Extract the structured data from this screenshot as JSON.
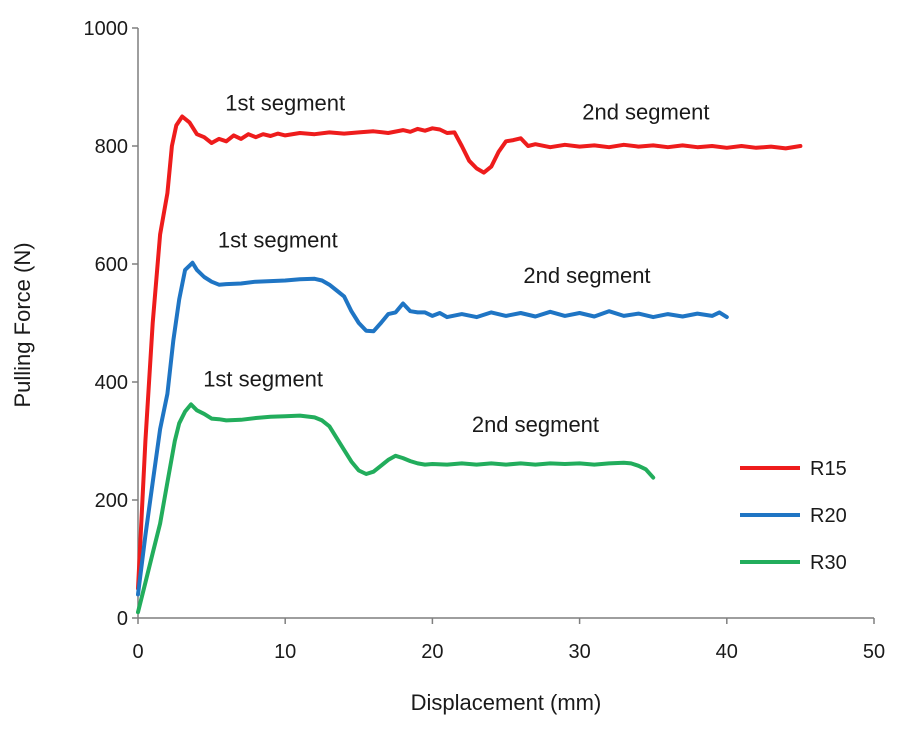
{
  "chart_data": {
    "type": "line",
    "title": "",
    "xlabel": "Displacement (mm)",
    "ylabel": "Pulling Force (N)",
    "xlim": [
      0,
      50
    ],
    "ylim": [
      0,
      1000
    ],
    "xticks": [
      "0",
      "10",
      "20",
      "30",
      "40",
      "50"
    ],
    "yticks": [
      "0",
      "200",
      "400",
      "600",
      "800",
      "1000"
    ],
    "grid": false,
    "legend_position": "right",
    "series": [
      {
        "name": "R15",
        "color": "#ee1c1c",
        "points": [
          [
            0,
            50
          ],
          [
            0.5,
            300
          ],
          [
            1,
            500
          ],
          [
            1.5,
            650
          ],
          [
            2,
            720
          ],
          [
            2.3,
            800
          ],
          [
            2.6,
            835
          ],
          [
            3,
            850
          ],
          [
            3.5,
            840
          ],
          [
            4,
            820
          ],
          [
            4.5,
            815
          ],
          [
            5,
            805
          ],
          [
            5.5,
            812
          ],
          [
            6,
            808
          ],
          [
            6.5,
            818
          ],
          [
            7,
            812
          ],
          [
            7.5,
            820
          ],
          [
            8,
            815
          ],
          [
            8.5,
            820
          ],
          [
            9,
            817
          ],
          [
            9.5,
            821
          ],
          [
            10,
            818
          ],
          [
            11,
            822
          ],
          [
            12,
            820
          ],
          [
            13,
            823
          ],
          [
            14,
            821
          ],
          [
            15,
            823
          ],
          [
            16,
            825
          ],
          [
            17,
            822
          ],
          [
            18,
            827
          ],
          [
            18.5,
            824
          ],
          [
            19,
            829
          ],
          [
            19.5,
            826
          ],
          [
            20,
            830
          ],
          [
            20.5,
            828
          ],
          [
            21,
            822
          ],
          [
            21.5,
            823
          ],
          [
            22,
            800
          ],
          [
            22.5,
            775
          ],
          [
            23,
            762
          ],
          [
            23.5,
            755
          ],
          [
            24,
            765
          ],
          [
            24.5,
            790
          ],
          [
            25,
            808
          ],
          [
            25.5,
            810
          ],
          [
            26,
            813
          ],
          [
            26.5,
            800
          ],
          [
            27,
            803
          ],
          [
            28,
            798
          ],
          [
            29,
            802
          ],
          [
            30,
            799
          ],
          [
            31,
            801
          ],
          [
            32,
            798
          ],
          [
            33,
            802
          ],
          [
            34,
            799
          ],
          [
            35,
            801
          ],
          [
            36,
            798
          ],
          [
            37,
            801
          ],
          [
            38,
            798
          ],
          [
            39,
            800
          ],
          [
            40,
            797
          ],
          [
            41,
            800
          ],
          [
            42,
            797
          ],
          [
            43,
            799
          ],
          [
            44,
            796
          ],
          [
            45,
            800
          ]
        ]
      },
      {
        "name": "R20",
        "color": "#1f75c4",
        "points": [
          [
            0,
            40
          ],
          [
            0.5,
            140
          ],
          [
            1,
            230
          ],
          [
            1.5,
            320
          ],
          [
            2,
            380
          ],
          [
            2.4,
            470
          ],
          [
            2.8,
            540
          ],
          [
            3.2,
            590
          ],
          [
            3.7,
            602
          ],
          [
            4,
            590
          ],
          [
            4.5,
            578
          ],
          [
            5,
            570
          ],
          [
            5.5,
            565
          ],
          [
            6,
            566
          ],
          [
            7,
            567
          ],
          [
            8,
            570
          ],
          [
            9,
            571
          ],
          [
            10,
            572
          ],
          [
            11,
            574
          ],
          [
            12,
            575
          ],
          [
            12.5,
            572
          ],
          [
            13,
            565
          ],
          [
            13.5,
            555
          ],
          [
            14,
            545
          ],
          [
            14.5,
            520
          ],
          [
            15,
            500
          ],
          [
            15.5,
            487
          ],
          [
            16,
            486
          ],
          [
            16.5,
            500
          ],
          [
            17,
            515
          ],
          [
            17.5,
            518
          ],
          [
            18,
            533
          ],
          [
            18.5,
            520
          ],
          [
            19,
            518
          ],
          [
            19.5,
            518
          ],
          [
            20,
            512
          ],
          [
            20.5,
            517
          ],
          [
            21,
            510
          ],
          [
            22,
            515
          ],
          [
            23,
            510
          ],
          [
            24,
            518
          ],
          [
            25,
            512
          ],
          [
            26,
            517
          ],
          [
            27,
            511
          ],
          [
            28,
            519
          ],
          [
            29,
            512
          ],
          [
            30,
            517
          ],
          [
            31,
            511
          ],
          [
            32,
            520
          ],
          [
            33,
            512
          ],
          [
            34,
            516
          ],
          [
            35,
            510
          ],
          [
            36,
            515
          ],
          [
            37,
            511
          ],
          [
            38,
            516
          ],
          [
            39,
            512
          ],
          [
            39.5,
            518
          ],
          [
            40,
            510
          ]
        ]
      },
      {
        "name": "R30",
        "color": "#22ad5c",
        "points": [
          [
            0,
            10
          ],
          [
            0.5,
            60
          ],
          [
            1,
            110
          ],
          [
            1.5,
            160
          ],
          [
            2,
            230
          ],
          [
            2.5,
            300
          ],
          [
            2.8,
            330
          ],
          [
            3.2,
            350
          ],
          [
            3.6,
            362
          ],
          [
            4,
            352
          ],
          [
            4.5,
            346
          ],
          [
            5,
            338
          ],
          [
            5.5,
            337
          ],
          [
            6,
            335
          ],
          [
            7,
            336
          ],
          [
            8,
            339
          ],
          [
            9,
            341
          ],
          [
            10,
            342
          ],
          [
            11,
            343
          ],
          [
            12,
            340
          ],
          [
            12.5,
            335
          ],
          [
            13,
            325
          ],
          [
            13.5,
            305
          ],
          [
            14,
            285
          ],
          [
            14.5,
            265
          ],
          [
            15,
            250
          ],
          [
            15.5,
            244
          ],
          [
            16,
            248
          ],
          [
            16.5,
            258
          ],
          [
            17,
            268
          ],
          [
            17.5,
            275
          ],
          [
            18,
            271
          ],
          [
            18.5,
            266
          ],
          [
            19,
            262
          ],
          [
            19.5,
            260
          ],
          [
            20,
            261
          ],
          [
            21,
            260
          ],
          [
            22,
            262
          ],
          [
            23,
            260
          ],
          [
            24,
            262
          ],
          [
            25,
            260
          ],
          [
            26,
            262
          ],
          [
            27,
            260
          ],
          [
            28,
            262
          ],
          [
            29,
            261
          ],
          [
            30,
            262
          ],
          [
            31,
            260
          ],
          [
            32,
            262
          ],
          [
            33,
            263
          ],
          [
            33.5,
            262
          ],
          [
            34,
            258
          ],
          [
            34.5,
            252
          ],
          [
            35,
            238
          ]
        ]
      }
    ],
    "annotations": [
      {
        "text": "1st segment",
        "x": 10,
        "y": 860
      },
      {
        "text": "2nd segment",
        "x": 34.5,
        "y": 845
      },
      {
        "text": "1st segment",
        "x": 9.5,
        "y": 628
      },
      {
        "text": "2nd segment",
        "x": 30.5,
        "y": 568
      },
      {
        "text": "1st segment",
        "x": 8.5,
        "y": 392
      },
      {
        "text": "2nd segment",
        "x": 27,
        "y": 315
      }
    ]
  }
}
